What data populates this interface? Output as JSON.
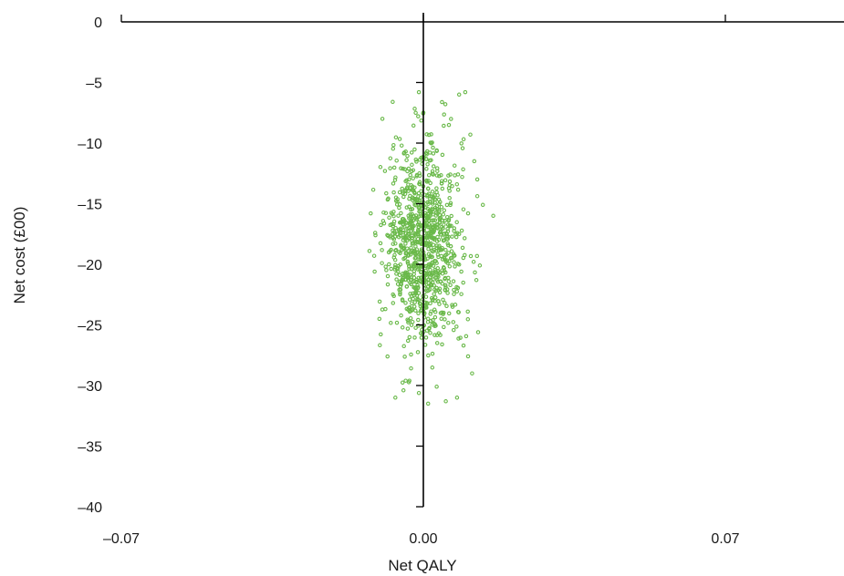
{
  "chart_data": {
    "type": "scatter",
    "title": "",
    "xlabel": "Net QALY",
    "ylabel": "Net cost (£00)",
    "xlim": [
      -0.07,
      0.0975
    ],
    "ylim": [
      -40,
      0
    ],
    "x_ticks": [
      -0.07,
      0.0,
      0.07
    ],
    "x_tick_labels": [
      "–0.07",
      "0.00",
      "0.07"
    ],
    "y_ticks": [
      0,
      -5,
      -10,
      -15,
      -20,
      -25,
      -30,
      -35,
      -40
    ],
    "y_tick_labels": [
      "0",
      "–5",
      "–10",
      "–15",
      "–20",
      "–25",
      "–30",
      "–35",
      "–40"
    ],
    "grid": false,
    "legend": "none",
    "series": [
      {
        "color": "#6ab94a",
        "marker": "open-circle",
        "n_points": 1000,
        "x_mean": 0.0,
        "x_sd": 0.0042,
        "y_mean": -18.3,
        "y_sd": 4.0,
        "points": [
          [
            -0.0122,
            -15.8
          ],
          [
            0.0162,
            -16.0
          ],
          [
            0.0097,
            -5.8
          ],
          [
            0.0083,
            -6.0
          ],
          [
            -0.0065,
            -31.0
          ],
          [
            -0.0046,
            -30.4
          ],
          [
            0.0011,
            -31.5
          ],
          [
            0.0052,
            -31.3
          ],
          [
            0.0078,
            -31.0
          ],
          [
            -0.0113,
            -20.6
          ],
          [
            -0.0102,
            -24.5
          ],
          [
            0.0127,
            -25.6
          ],
          [
            0.0113,
            -29.0
          ],
          [
            0.0125,
            -13.0
          ],
          [
            -0.0071,
            -6.6
          ],
          [
            0.0051,
            -6.8
          ],
          [
            -0.0095,
            -8.0
          ],
          [
            0.0109,
            -9.3
          ],
          [
            0.0123,
            -21.3
          ],
          [
            -0.0111,
            -17.6
          ],
          [
            -0.0089,
            -12.3
          ],
          [
            0.0118,
            -11.5
          ],
          [
            0.0103,
            -23.9
          ],
          [
            -0.0083,
            -27.6
          ],
          [
            0.0093,
            -26.7
          ],
          [
            -0.0041,
            -29.6
          ],
          [
            0.0031,
            -30.1
          ],
          [
            0.0138,
            -15.1
          ],
          [
            -0.0114,
            -19.3
          ],
          [
            0.0131,
            -20.1
          ]
        ]
      }
    ]
  }
}
